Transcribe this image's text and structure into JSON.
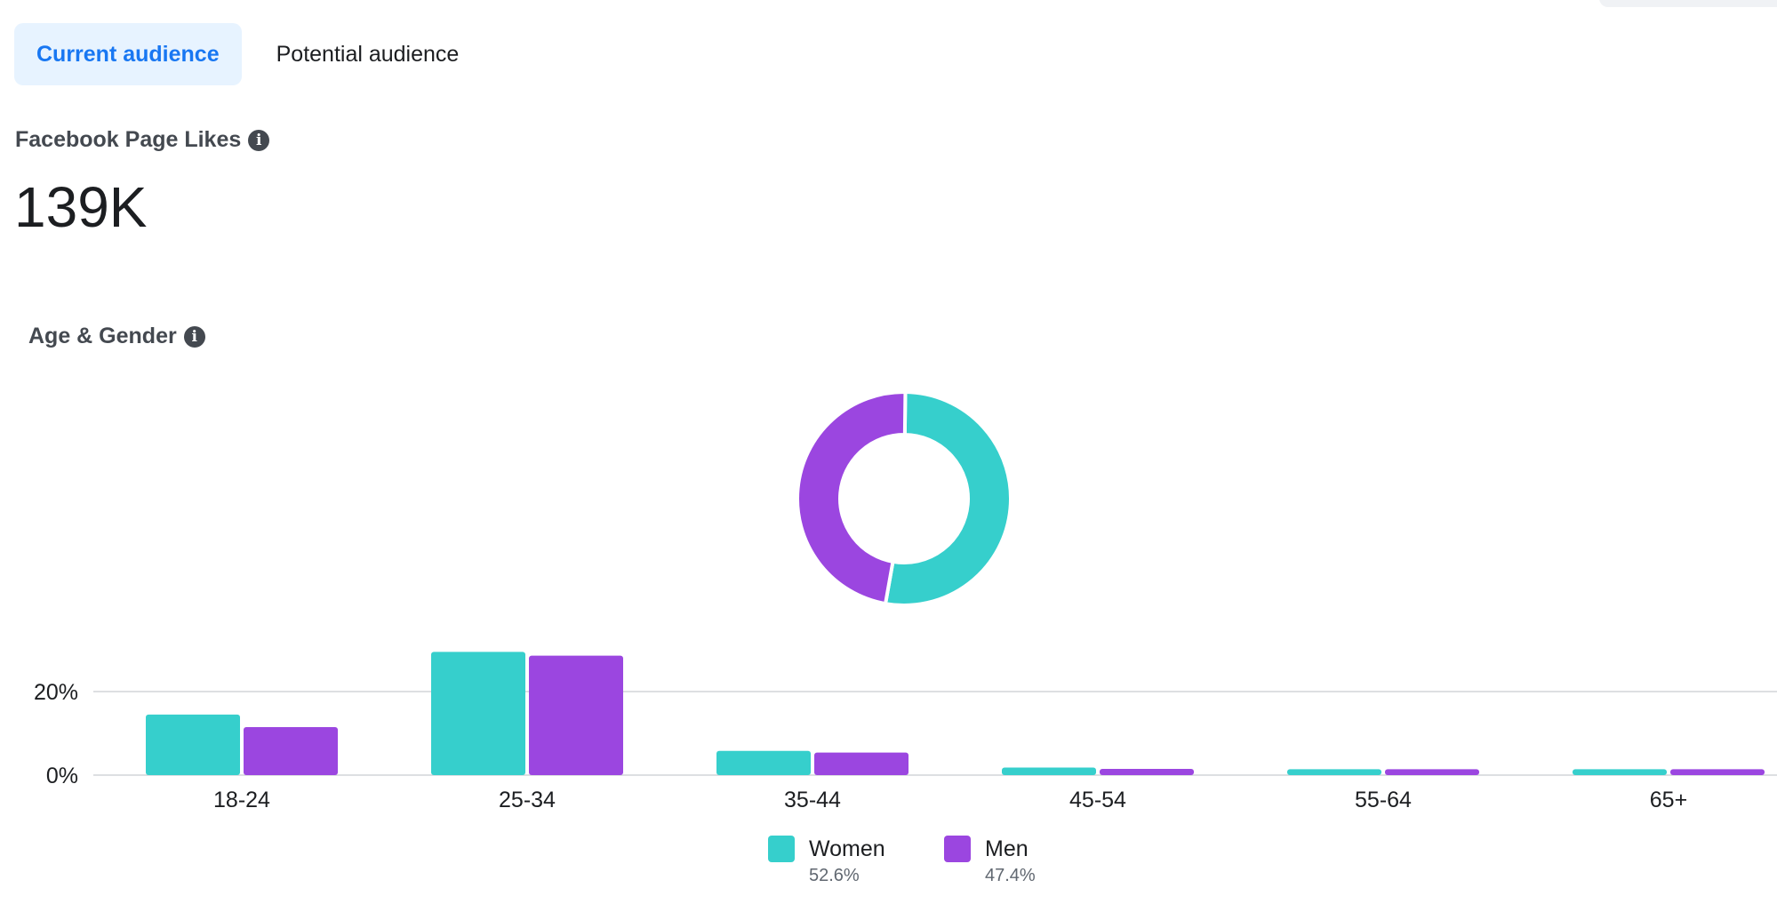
{
  "tabs": [
    {
      "label": "Current audience",
      "active": true
    },
    {
      "label": "Potential audience",
      "active": false
    }
  ],
  "likes": {
    "label": "Facebook Page Likes",
    "value": "139K"
  },
  "section": {
    "label": "Age & Gender"
  },
  "colors": {
    "women": "#36cfcc",
    "men": "#9b46e0",
    "active_tab_bg": "#e7f3ff",
    "active_tab_text": "#1877f2",
    "grid": "#dddfe2"
  },
  "icons": {
    "info": "info-icon"
  },
  "chart_data": [
    {
      "type": "pie",
      "variant": "donut",
      "labels": [
        "Women",
        "Men"
      ],
      "values": [
        52.6,
        47.4
      ]
    },
    {
      "type": "bar",
      "categories": [
        "18-24",
        "25-34",
        "35-44",
        "45-54",
        "55-64",
        "65+"
      ],
      "series": [
        {
          "name": "Women",
          "values": [
            14.5,
            29.5,
            5.8,
            1.8,
            1.4,
            1.4
          ]
        },
        {
          "name": "Men",
          "values": [
            11.5,
            28.6,
            5.4,
            1.5,
            1.4,
            1.4
          ]
        }
      ],
      "yticks": [
        0,
        20
      ],
      "ytick_labels": [
        "0%",
        "20%"
      ],
      "ylim": [
        0,
        30
      ],
      "grid": true
    }
  ],
  "legend": [
    {
      "name": "Women",
      "pct": "52.6%"
    },
    {
      "name": "Men",
      "pct": "47.4%"
    }
  ]
}
